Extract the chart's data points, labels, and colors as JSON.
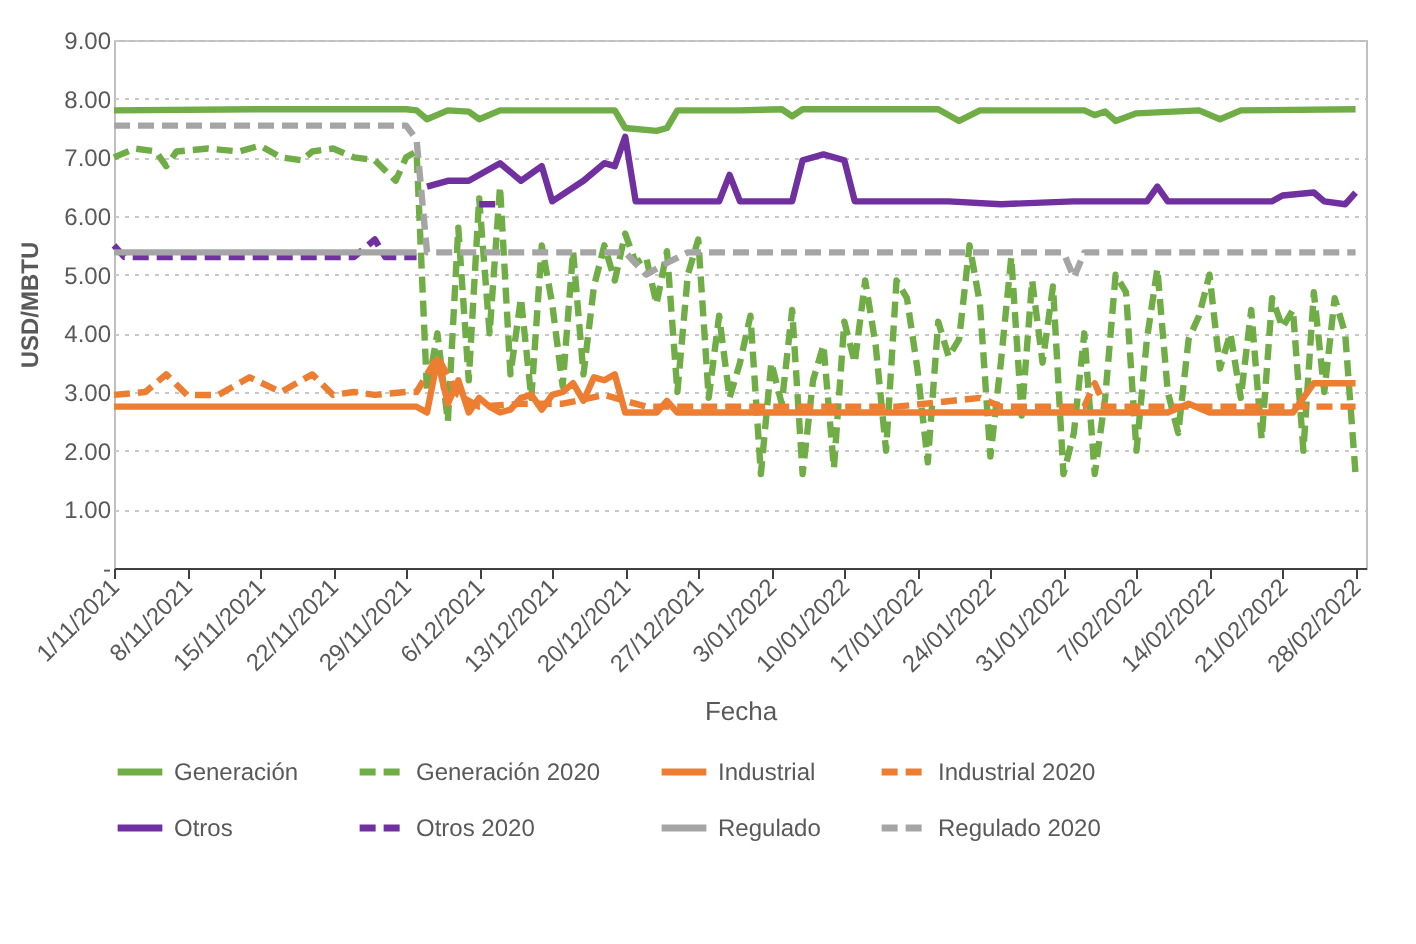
{
  "chart_data": {
    "type": "line",
    "xlabel": "Fecha",
    "ylabel": "USD/MBTU",
    "xlim": [
      "2021-11-01",
      "2022-03-01"
    ],
    "ylim": [
      0,
      9
    ],
    "yticks": [
      {
        "value": 0,
        "label": "-"
      },
      {
        "value": 1,
        "label": "1.00"
      },
      {
        "value": 2,
        "label": "2.00"
      },
      {
        "value": 3,
        "label": "3.00"
      },
      {
        "value": 4,
        "label": "4.00"
      },
      {
        "value": 5,
        "label": "5.00"
      },
      {
        "value": 6,
        "label": "6.00"
      },
      {
        "value": 7,
        "label": "7.00"
      },
      {
        "value": 8,
        "label": "8.00"
      },
      {
        "value": 9,
        "label": "9.00"
      }
    ],
    "xticks": [
      {
        "value": "2021-11-01",
        "label": "1/11/2021"
      },
      {
        "value": "2021-11-08",
        "label": "8/11/2021"
      },
      {
        "value": "2021-11-15",
        "label": "15/11/2021"
      },
      {
        "value": "2021-11-22",
        "label": "22/11/2021"
      },
      {
        "value": "2021-11-29",
        "label": "29/11/2021"
      },
      {
        "value": "2021-12-06",
        "label": "6/12/2021"
      },
      {
        "value": "2021-12-13",
        "label": "13/12/2021"
      },
      {
        "value": "2021-12-20",
        "label": "20/12/2021"
      },
      {
        "value": "2021-12-27",
        "label": "27/12/2021"
      },
      {
        "value": "2022-01-03",
        "label": "3/01/2022"
      },
      {
        "value": "2022-01-10",
        "label": "10/01/2022"
      },
      {
        "value": "2022-01-17",
        "label": "17/01/2022"
      },
      {
        "value": "2022-01-24",
        "label": "24/01/2022"
      },
      {
        "value": "2022-01-31",
        "label": "31/01/2022"
      },
      {
        "value": "2022-02-07",
        "label": "7/02/2022"
      },
      {
        "value": "2022-02-14",
        "label": "14/02/2022"
      },
      {
        "value": "2022-02-21",
        "label": "21/02/2022"
      },
      {
        "value": "2022-02-28",
        "label": "28/02/2022"
      }
    ],
    "grid": "y",
    "legend": "bottom",
    "series": [
      {
        "name": "Generación",
        "color": "#70ad47",
        "line_style": "solid",
        "x": [
          "2021-11-01",
          "2021-11-15",
          "2021-11-29",
          "2021-11-30",
          "2021-12-01",
          "2021-12-03",
          "2021-12-05",
          "2021-12-06",
          "2021-12-08",
          "2021-12-19",
          "2021-12-20",
          "2021-12-23",
          "2021-12-24",
          "2021-12-25",
          "2021-12-31",
          "2022-01-04",
          "2022-01-05",
          "2022-01-06",
          "2022-01-19",
          "2022-01-21",
          "2022-01-23",
          "2022-02-02",
          "2022-02-03",
          "2022-02-04",
          "2022-02-05",
          "2022-02-07",
          "2022-02-13",
          "2022-02-15",
          "2022-02-17",
          "2022-02-28"
        ],
        "values": [
          7.8,
          7.82,
          7.82,
          7.8,
          7.65,
          7.8,
          7.78,
          7.65,
          7.8,
          7.8,
          7.5,
          7.45,
          7.5,
          7.8,
          7.8,
          7.82,
          7.7,
          7.82,
          7.82,
          7.62,
          7.8,
          7.8,
          7.72,
          7.78,
          7.62,
          7.75,
          7.8,
          7.65,
          7.8,
          7.82
        ]
      },
      {
        "name": "Generación 2020",
        "color": "#70ad47",
        "line_style": "dashed",
        "x": [
          "2021-11-01",
          "2021-11-03",
          "2021-11-05",
          "2021-11-06",
          "2021-11-07",
          "2021-11-10",
          "2021-11-13",
          "2021-11-15",
          "2021-11-17",
          "2021-11-19",
          "2021-11-20",
          "2021-11-22",
          "2021-11-24",
          "2021-11-26",
          "2021-11-28",
          "2021-11-29",
          "2021-11-30",
          "2021-12-01",
          "2021-12-02",
          "2021-12-03",
          "2021-12-04",
          "2021-12-05",
          "2021-12-06",
          "2021-12-07",
          "2021-12-08",
          "2021-12-09",
          "2021-12-10",
          "2021-12-11",
          "2021-12-12",
          "2021-12-13",
          "2021-12-14",
          "2021-12-15",
          "2021-12-16",
          "2021-12-17",
          "2021-12-18",
          "2021-12-19",
          "2021-12-20",
          "2021-12-21",
          "2021-12-22",
          "2021-12-23",
          "2021-12-24",
          "2021-12-25",
          "2021-12-26",
          "2021-12-27",
          "2021-12-28",
          "2021-12-29",
          "2021-12-30",
          "2021-12-31",
          "2022-01-01",
          "2022-01-02",
          "2022-01-03",
          "2022-01-04",
          "2022-01-05",
          "2022-01-06",
          "2022-01-07",
          "2022-01-08",
          "2022-01-09",
          "2022-01-10",
          "2022-01-11",
          "2022-01-12",
          "2022-01-13",
          "2022-01-14",
          "2022-01-15",
          "2022-01-16",
          "2022-01-17",
          "2022-01-18",
          "2022-01-19",
          "2022-01-20",
          "2022-01-21",
          "2022-01-22",
          "2022-01-23",
          "2022-01-24",
          "2022-01-25",
          "2022-01-26",
          "2022-01-27",
          "2022-01-28",
          "2022-01-29",
          "2022-01-30",
          "2022-01-31",
          "2022-02-01",
          "2022-02-02",
          "2022-02-03",
          "2022-02-04",
          "2022-02-05",
          "2022-02-06",
          "2022-02-07",
          "2022-02-08",
          "2022-02-09",
          "2022-02-10",
          "2022-02-11",
          "2022-02-12",
          "2022-02-13",
          "2022-02-14",
          "2022-02-15",
          "2022-02-16",
          "2022-02-17",
          "2022-02-18",
          "2022-02-19",
          "2022-02-20",
          "2022-02-21",
          "2022-02-22",
          "2022-02-23",
          "2022-02-24",
          "2022-02-25",
          "2022-02-26",
          "2022-02-27",
          "2022-02-28"
        ],
        "values": [
          7.0,
          7.15,
          7.1,
          6.85,
          7.1,
          7.15,
          7.1,
          7.2,
          7.0,
          6.95,
          7.1,
          7.15,
          7.0,
          6.95,
          6.6,
          7.0,
          7.1,
          3.0,
          4.0,
          2.5,
          5.8,
          3.2,
          6.3,
          4.0,
          6.5,
          3.3,
          4.6,
          2.9,
          5.5,
          4.5,
          3.1,
          5.4,
          3.3,
          4.8,
          5.5,
          4.9,
          5.7,
          5.2,
          5.3,
          4.5,
          5.4,
          3.0,
          5.0,
          5.6,
          2.9,
          4.3,
          2.9,
          3.5,
          4.3,
          1.6,
          3.5,
          2.8,
          4.4,
          1.6,
          3.2,
          3.8,
          1.7,
          4.2,
          3.5,
          4.9,
          3.8,
          2.0,
          4.9,
          4.6,
          3.4,
          1.8,
          4.2,
          3.6,
          3.9,
          5.5,
          4.5,
          1.9,
          3.5,
          5.3,
          2.6,
          4.9,
          3.5,
          4.8,
          1.6,
          2.3,
          4.0,
          1.6,
          2.9,
          5.0,
          4.7,
          2.0,
          3.9,
          5.1,
          3.0,
          2.3,
          3.9,
          4.3,
          5.0,
          3.4,
          4.0,
          2.9,
          4.4,
          2.2,
          4.6,
          4.1,
          4.4,
          2.0,
          4.7,
          3.0,
          4.6,
          4.0,
          1.6
        ]
      },
      {
        "name": "Industrial",
        "color": "#ed7d31",
        "line_style": "solid",
        "x": [
          "2021-11-01",
          "2021-11-29",
          "2021-11-30",
          "2021-12-01",
          "2021-12-02",
          "2021-12-03",
          "2021-12-04",
          "2021-12-05",
          "2021-12-06",
          "2021-12-07",
          "2021-12-08",
          "2021-12-09",
          "2021-12-10",
          "2021-12-11",
          "2021-12-12",
          "2021-12-13",
          "2021-12-14",
          "2021-12-15",
          "2021-12-16",
          "2021-12-17",
          "2021-12-18",
          "2021-12-19",
          "2021-12-20",
          "2021-12-23",
          "2021-12-24",
          "2021-12-25",
          "2022-01-20",
          "2022-02-10",
          "2022-02-12",
          "2022-02-14",
          "2022-02-22",
          "2022-02-24",
          "2022-02-28"
        ],
        "values": [
          2.75,
          2.75,
          2.75,
          2.65,
          3.55,
          2.8,
          3.2,
          2.65,
          2.9,
          2.75,
          2.65,
          2.7,
          2.9,
          2.95,
          2.7,
          2.95,
          3.0,
          3.15,
          2.85,
          3.25,
          3.2,
          3.3,
          2.65,
          2.65,
          2.85,
          2.65,
          2.65,
          2.65,
          2.8,
          2.65,
          2.65,
          3.15,
          3.15
        ]
      },
      {
        "name": "Industrial 2020",
        "color": "#ed7d31",
        "line_style": "dashed",
        "x": [
          "2021-11-01",
          "2021-11-04",
          "2021-11-06",
          "2021-11-08",
          "2021-11-11",
          "2021-11-14",
          "2021-11-17",
          "2021-11-20",
          "2021-11-22",
          "2021-11-24",
          "2021-11-26",
          "2021-11-29",
          "2021-11-30",
          "2021-12-02",
          "2021-12-04",
          "2021-12-06",
          "2021-12-10",
          "2021-12-14",
          "2021-12-18",
          "2021-12-22",
          "2021-12-26",
          "2022-01-05",
          "2022-01-15",
          "2022-01-23",
          "2022-01-25",
          "2022-02-02",
          "2022-02-03",
          "2022-02-04",
          "2022-02-15",
          "2022-02-20",
          "2022-02-24",
          "2022-02-28"
        ],
        "values": [
          2.95,
          3.0,
          3.3,
          2.95,
          2.95,
          3.25,
          3.0,
          3.3,
          2.95,
          3.0,
          2.95,
          3.0,
          3.0,
          3.6,
          2.95,
          2.75,
          2.8,
          2.8,
          2.95,
          2.75,
          2.75,
          2.75,
          2.75,
          2.9,
          2.75,
          2.75,
          3.15,
          2.75,
          2.75,
          2.75,
          2.75,
          2.75
        ]
      },
      {
        "name": "Otros",
        "color": "#7030a0",
        "line_style": "solid",
        "x": [
          "2021-12-01",
          "2021-12-03",
          "2021-12-05",
          "2021-12-08",
          "2021-12-10",
          "2021-12-12",
          "2021-12-13",
          "2021-12-16",
          "2021-12-18",
          "2021-12-19",
          "2021-12-20",
          "2021-12-21",
          "2021-12-29",
          "2021-12-30",
          "2021-12-31",
          "2022-01-05",
          "2022-01-06",
          "2022-01-08",
          "2022-01-10",
          "2022-01-11",
          "2022-01-20",
          "2022-01-25",
          "2022-02-01",
          "2022-02-08",
          "2022-02-09",
          "2022-02-10",
          "2022-02-20",
          "2022-02-21",
          "2022-02-24",
          "2022-02-25",
          "2022-02-27",
          "2022-02-28"
        ],
        "values": [
          6.5,
          6.6,
          6.6,
          6.9,
          6.6,
          6.85,
          6.25,
          6.6,
          6.9,
          6.85,
          7.35,
          6.25,
          6.25,
          6.7,
          6.25,
          6.25,
          6.95,
          7.05,
          6.95,
          6.25,
          6.25,
          6.2,
          6.25,
          6.25,
          6.5,
          6.25,
          6.25,
          6.35,
          6.4,
          6.25,
          6.2,
          6.4
        ]
      },
      {
        "name": "Otros 2020",
        "color": "#7030a0",
        "line_style": "dashed",
        "x": [
          "2021-11-01",
          "2021-11-02",
          "2021-11-24",
          "2021-11-26",
          "2021-11-27",
          "2021-11-30",
          "2021-12-01",
          "2021-12-06",
          "2021-12-08"
        ],
        "values": [
          5.5,
          5.3,
          5.3,
          5.6,
          5.3,
          5.3,
          null,
          6.2,
          6.2
        ]
      },
      {
        "name": "Regulado",
        "color": "#a5a5a5",
        "line_style": "solid",
        "x": [
          "2021-11-01",
          "2021-11-30"
        ],
        "values": [
          5.38,
          5.38
        ]
      },
      {
        "name": "Regulado 2020",
        "color": "#a5a5a5",
        "line_style": "dashed",
        "x": [
          "2021-11-01",
          "2021-11-29",
          "2021-11-30",
          "2021-12-01",
          "2021-12-20",
          "2021-12-22",
          "2021-12-24",
          "2021-12-26",
          "2022-01-31",
          "2022-02-01",
          "2022-02-02",
          "2022-02-28"
        ],
        "values": [
          7.54,
          7.54,
          7.3,
          5.38,
          5.38,
          5.0,
          5.2,
          5.38,
          5.38,
          4.95,
          5.38,
          5.38
        ]
      }
    ]
  }
}
